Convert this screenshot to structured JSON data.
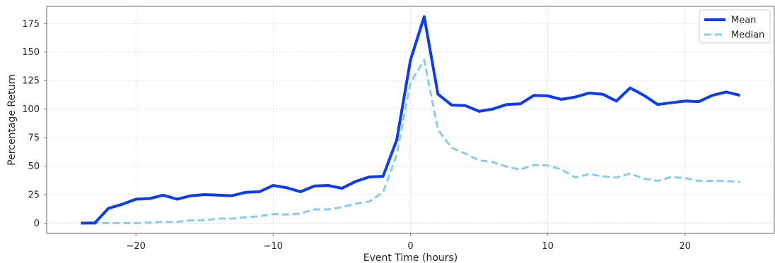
{
  "chart_data": {
    "type": "line",
    "xlabel": "Event Time (hours)",
    "ylabel": "Percentage Return",
    "xlim": [
      -26.5,
      26.5
    ],
    "ylim": [
      -9,
      190
    ],
    "xticks": [
      -20,
      -10,
      0,
      10,
      20
    ],
    "xtick_labels": [
      "−20",
      "−10",
      "0",
      "10",
      "20"
    ],
    "yticks": [
      0,
      25,
      50,
      75,
      100,
      125,
      150,
      175
    ],
    "ytick_labels": [
      "0",
      "25",
      "50",
      "75",
      "100",
      "125",
      "150",
      "175"
    ],
    "grid": true,
    "legend_position": "top-right",
    "x": [
      -24,
      -23,
      -22,
      -21,
      -20,
      -19,
      -18,
      -17,
      -16,
      -15,
      -14,
      -13,
      -12,
      -11,
      -10,
      -9,
      -8,
      -7,
      -6,
      -5,
      -4,
      -3,
      -2,
      -1,
      0,
      1,
      2,
      3,
      4,
      5,
      6,
      7,
      8,
      9,
      10,
      11,
      12,
      13,
      14,
      15,
      16,
      17,
      18,
      19,
      20,
      21,
      22,
      23,
      24
    ],
    "series": [
      {
        "name": "Mean",
        "color": "#0a3cf5",
        "style": "solid",
        "values": [
          0,
          0,
          13,
          16.5,
          21,
          21.5,
          24.5,
          21,
          24,
          25,
          24.5,
          24,
          27,
          27.5,
          33,
          31,
          27.5,
          32.5,
          33,
          30.5,
          36.5,
          40.5,
          41,
          73,
          143,
          181,
          113,
          103.5,
          103,
          98,
          100,
          104,
          104.5,
          112,
          111.5,
          108.5,
          110.5,
          114,
          113,
          107,
          118.5,
          112,
          104,
          105.5,
          107,
          106.5,
          112,
          115,
          112
        ]
      },
      {
        "name": "Median",
        "color": "#87ceeb",
        "style": "dashed",
        "values": [
          0,
          0,
          0,
          0,
          0,
          0.5,
          1,
          1,
          2.5,
          2.5,
          4,
          4,
          5,
          6,
          8,
          7.5,
          8.5,
          12,
          12,
          14,
          17,
          19,
          27,
          60,
          123,
          143,
          82,
          66,
          61,
          55,
          53.5,
          49.5,
          47,
          51,
          50.5,
          47,
          40,
          43,
          41,
          40,
          43.5,
          39,
          37,
          40.5,
          39.5,
          37,
          37,
          37,
          36
        ]
      }
    ]
  }
}
